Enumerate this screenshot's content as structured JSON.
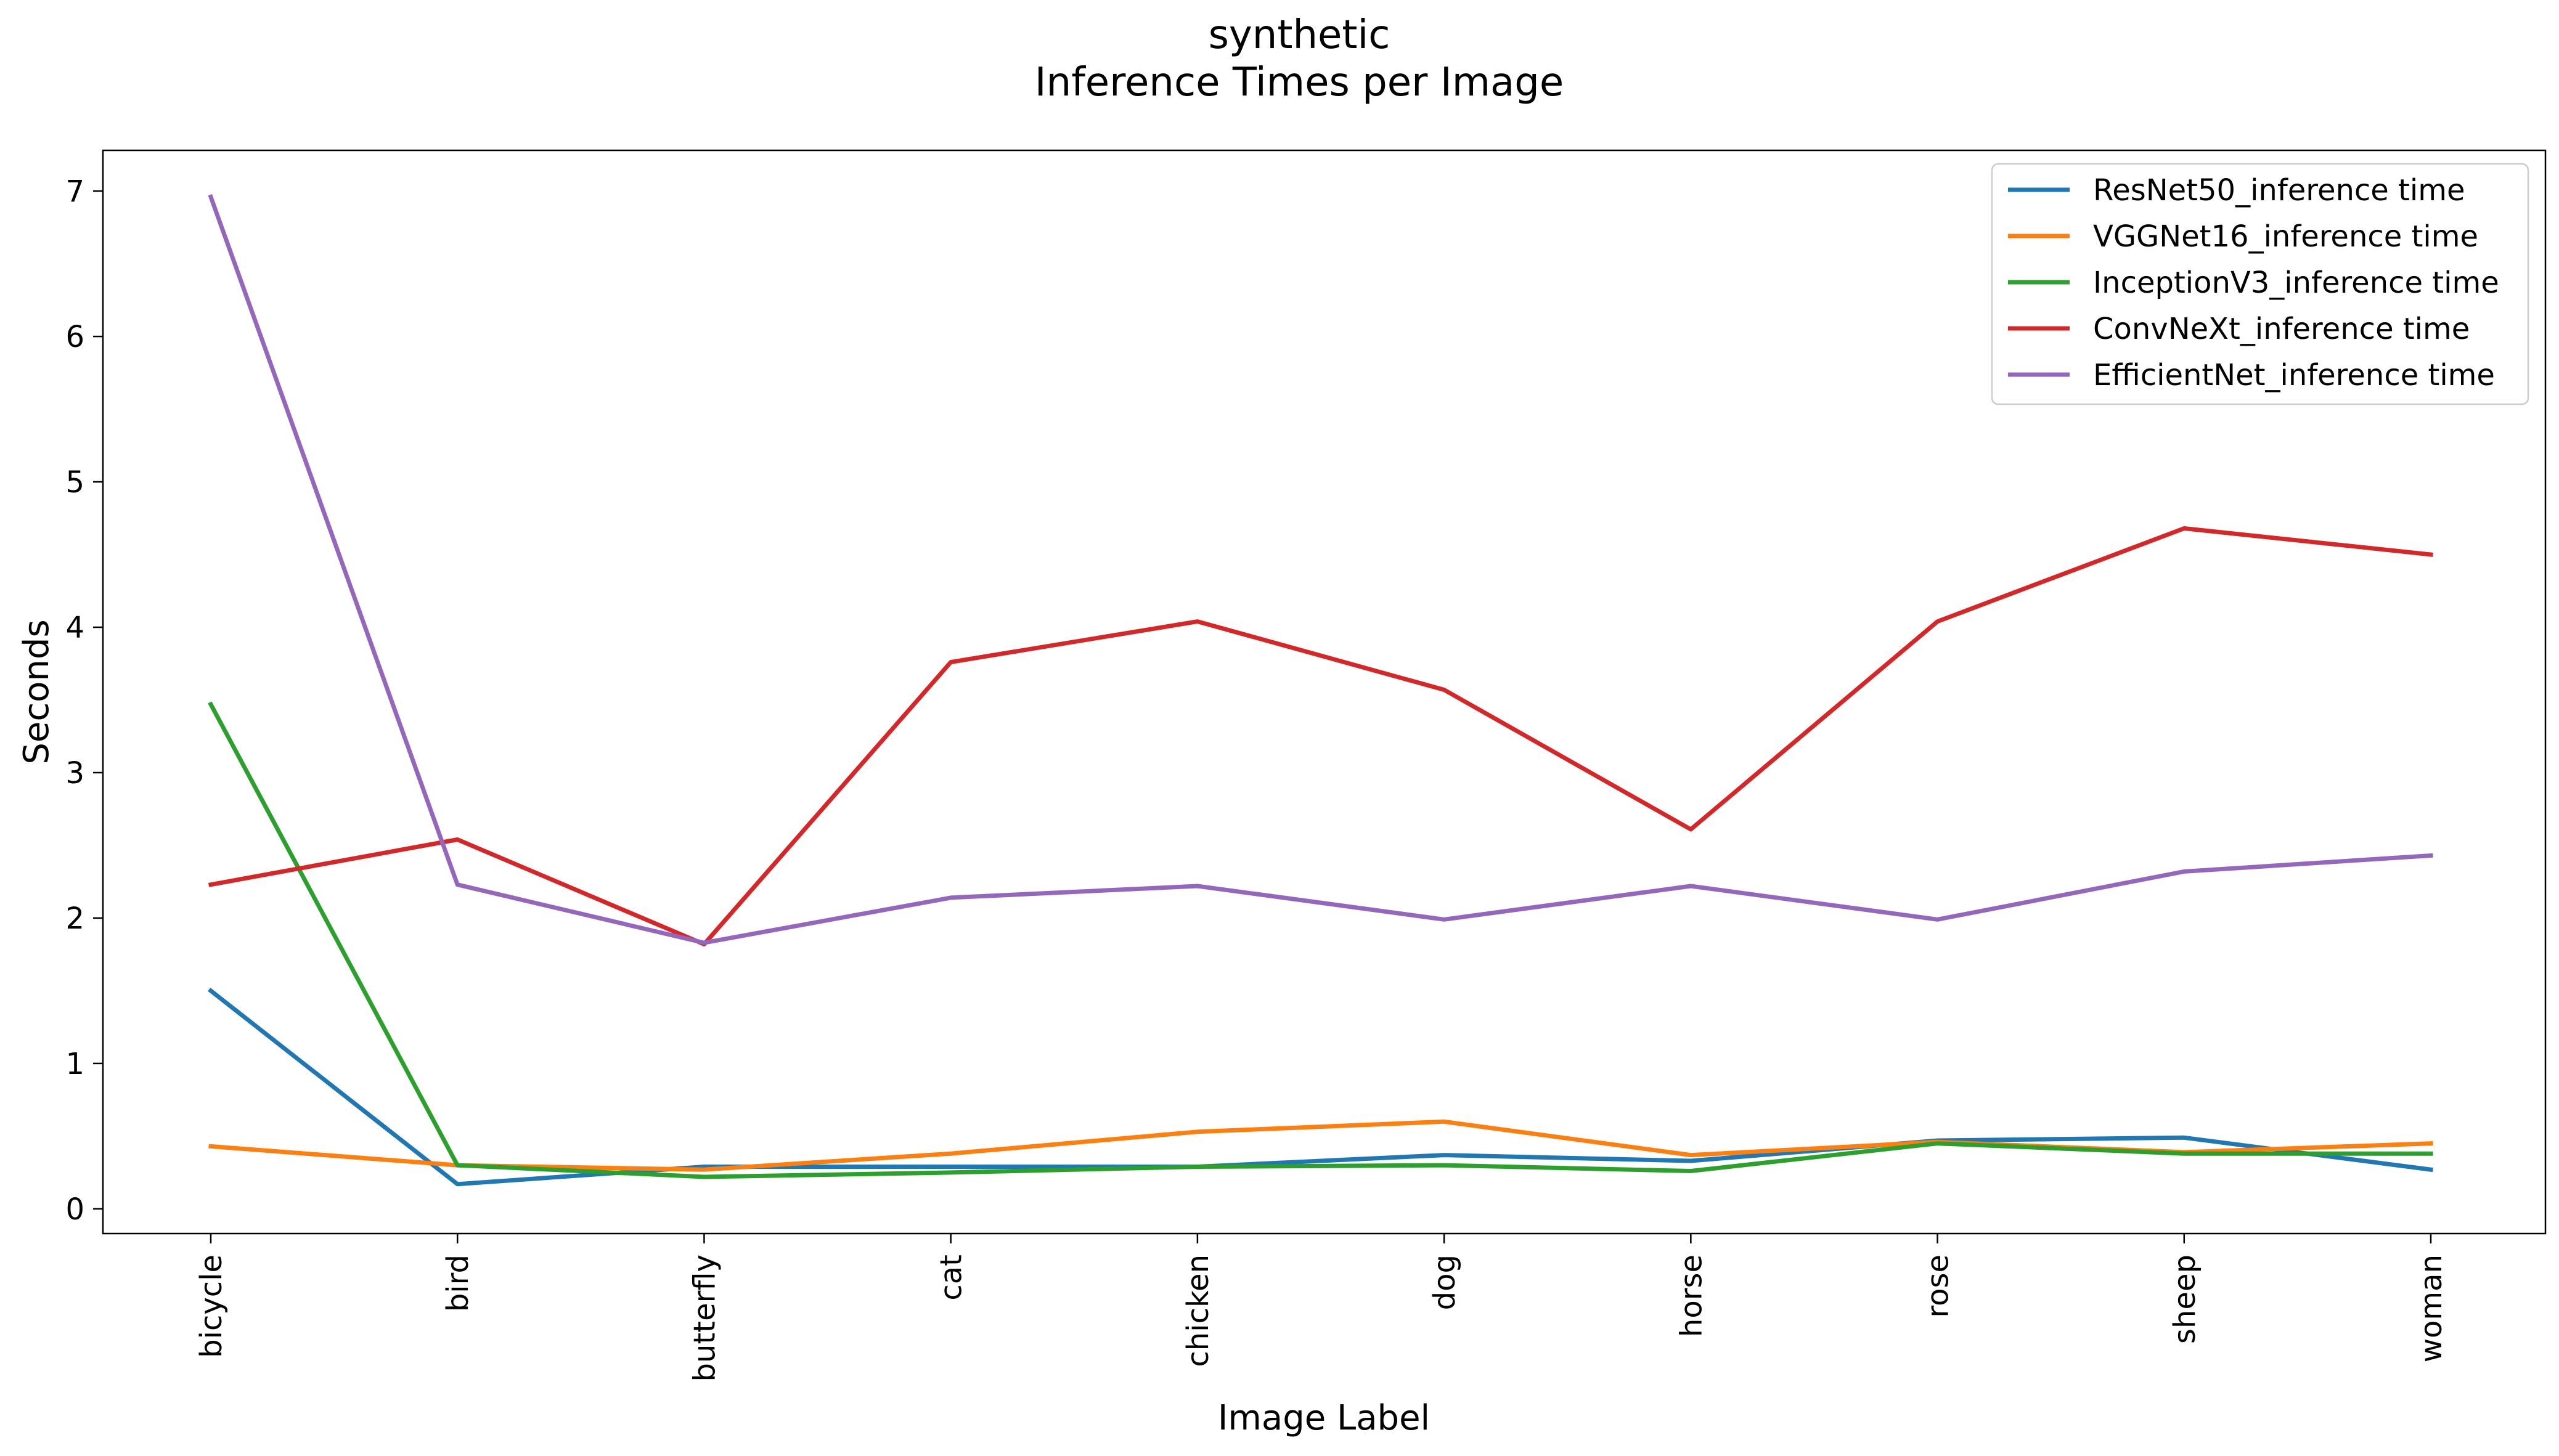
{
  "chart_data": {
    "type": "line",
    "title": "synthetic",
    "subtitle": "Inference Times per Image",
    "xlabel": "Image Label",
    "ylabel": "Seconds",
    "categories": [
      "bicycle",
      "bird",
      "butterfly",
      "cat",
      "chicken",
      "dog",
      "horse",
      "rose",
      "sheep",
      "woman"
    ],
    "ylim": [
      -0.17,
      7.28
    ],
    "yticks": [
      0,
      1,
      2,
      3,
      4,
      5,
      6,
      7
    ],
    "grid": false,
    "legend_position": "top-right",
    "series": [
      {
        "name": "ResNet50_inference time",
        "color": "#1f77b4",
        "values": [
          1.5,
          0.17,
          0.29,
          0.29,
          0.29,
          0.37,
          0.33,
          0.47,
          0.49,
          0.27
        ]
      },
      {
        "name": "VGGNet16_inference time",
        "color": "#ff7f0e",
        "values": [
          0.43,
          0.3,
          0.27,
          0.38,
          0.53,
          0.6,
          0.37,
          0.46,
          0.39,
          0.45
        ]
      },
      {
        "name": "InceptionV3_inference time",
        "color": "#2ca02c",
        "values": [
          3.47,
          0.3,
          0.22,
          0.25,
          0.29,
          0.3,
          0.26,
          0.45,
          0.38,
          0.38
        ]
      },
      {
        "name": "ConvNeXt_inference time",
        "color": "#d62728",
        "values": [
          2.23,
          2.54,
          1.82,
          3.76,
          4.04,
          3.57,
          2.61,
          4.04,
          4.68,
          4.5
        ]
      },
      {
        "name": "EfficientNet_inference time",
        "color": "#9467bd",
        "values": [
          6.96,
          2.23,
          1.83,
          2.14,
          2.22,
          1.99,
          2.22,
          1.99,
          2.32,
          2.43
        ]
      }
    ]
  }
}
